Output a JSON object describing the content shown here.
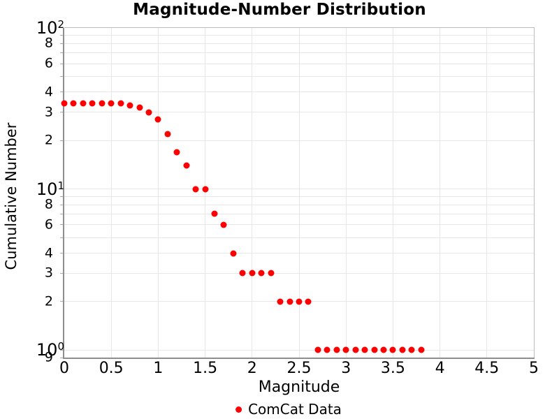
{
  "chart": {
    "title": "Magnitude-Number Distribution",
    "xlabel": "Magnitude",
    "ylabel": "Cumulative Number"
  },
  "legend": {
    "items": [
      {
        "label": "ComCat Data",
        "color": "#ff0000",
        "marker": "circle"
      }
    ]
  },
  "chart_data": {
    "type": "scatter",
    "title": "Magnitude-Number Distribution",
    "xlabel": "Magnitude",
    "ylabel": "Cumulative Number",
    "xlim": [
      0,
      5
    ],
    "ylim": [
      0.9,
      100
    ],
    "yscale": "log",
    "grid": true,
    "legend_position": "bottom-center",
    "series": [
      {
        "name": "ComCat Data",
        "color": "#ff0000",
        "marker": "circle",
        "x": [
          0.0,
          0.1,
          0.2,
          0.3,
          0.4,
          0.5,
          0.6,
          0.7,
          0.8,
          0.9,
          1.0,
          1.1,
          1.2,
          1.3,
          1.4,
          1.5,
          1.6,
          1.7,
          1.8,
          1.9,
          2.0,
          2.1,
          2.2,
          2.3,
          2.4,
          2.5,
          2.6,
          2.7,
          2.8,
          2.9,
          3.0,
          3.1,
          3.2,
          3.3,
          3.4,
          3.5,
          3.6,
          3.7,
          3.8
        ],
        "y": [
          34,
          34,
          34,
          34,
          34,
          34,
          34,
          33,
          32,
          30,
          27,
          22,
          17,
          14,
          10,
          10,
          7,
          6,
          4,
          3,
          3,
          3,
          3,
          2,
          2,
          2,
          2,
          1,
          1,
          1,
          1,
          1,
          1,
          1,
          1,
          1,
          1,
          1,
          1
        ]
      }
    ],
    "x_ticks": [
      {
        "value": 0,
        "label": "0"
      },
      {
        "value": 0.5,
        "label": "0.5"
      },
      {
        "value": 1,
        "label": "1"
      },
      {
        "value": 1.5,
        "label": "1.5"
      },
      {
        "value": 2,
        "label": "2"
      },
      {
        "value": 2.5,
        "label": "2.5"
      },
      {
        "value": 3,
        "label": "3"
      },
      {
        "value": 3.5,
        "label": "3.5"
      },
      {
        "value": 4,
        "label": "4"
      },
      {
        "value": 4.5,
        "label": "4.5"
      },
      {
        "value": 5,
        "label": "5"
      }
    ],
    "y_ticks_major": [
      {
        "value": 100,
        "mantissa": "10",
        "exponent": "2"
      },
      {
        "value": 10,
        "mantissa": "10",
        "exponent": "1"
      },
      {
        "value": 1,
        "mantissa": "10",
        "exponent": "0"
      }
    ],
    "y_ticks_minor": [
      {
        "value": 80,
        "label": "8"
      },
      {
        "value": 60,
        "label": "6"
      },
      {
        "value": 40,
        "label": "4"
      },
      {
        "value": 30,
        "label": "3"
      },
      {
        "value": 20,
        "label": "2"
      },
      {
        "value": 8,
        "label": "8"
      },
      {
        "value": 6,
        "label": "6"
      },
      {
        "value": 4,
        "label": "4"
      },
      {
        "value": 3,
        "label": "3"
      },
      {
        "value": 2,
        "label": "2"
      },
      {
        "value": 0.9,
        "label": "9"
      }
    ],
    "y_gridlines": [
      1,
      2,
      3,
      4,
      5,
      6,
      7,
      8,
      9,
      10,
      20,
      30,
      40,
      50,
      60,
      70,
      80,
      90
    ],
    "x_gridlines": [
      0.5,
      1,
      1.5,
      2,
      2.5,
      3,
      3.5,
      4,
      4.5
    ],
    "colors": {
      "marker": "#ff0000",
      "grid": "#e7e7e7",
      "spine": "#8e8e8e",
      "text": "#000000",
      "background": "#ffffff"
    }
  }
}
